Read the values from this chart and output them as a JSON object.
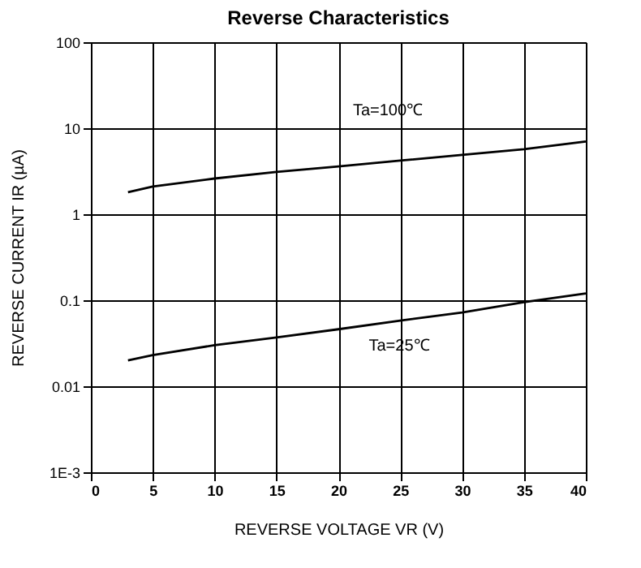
{
  "chart_data": {
    "type": "line",
    "title": "Reverse Characteristics",
    "xlabel": "REVERSE VOLTAGE  VR   (V)",
    "ylabel": "REVERSE CURRENT  IR   (µA)",
    "series": [
      {
        "color": "#000000",
        "x": [
          3,
          5,
          10,
          15,
          20,
          25,
          30,
          35,
          40
        ],
        "values": [
          1.8,
          2.1,
          2.6,
          3.1,
          3.6,
          4.2,
          4.9,
          5.7,
          7.0
        ]
      },
      {
        "color": "#000000",
        "x": [
          3,
          5,
          10,
          15,
          20,
          25,
          30,
          35,
          40
        ],
        "values": [
          0.02,
          0.023,
          0.03,
          0.037,
          0.046,
          0.058,
          0.072,
          0.095,
          0.12
        ]
      }
    ],
    "xlim": [
      0,
      40
    ],
    "xticks": [
      0,
      5,
      10,
      15,
      20,
      25,
      30,
      35,
      40
    ],
    "ylim": [
      0.001,
      100
    ],
    "yticks": [
      {
        "value": 0.001,
        "label": "1E-3"
      },
      0.01,
      0.1,
      1,
      10,
      100
    ],
    "log": "y",
    "grid": true,
    "line_style": "solid",
    "marker": "none",
    "annotations": [
      "Ta=100℃",
      "Ta=25℃"
    ]
  }
}
